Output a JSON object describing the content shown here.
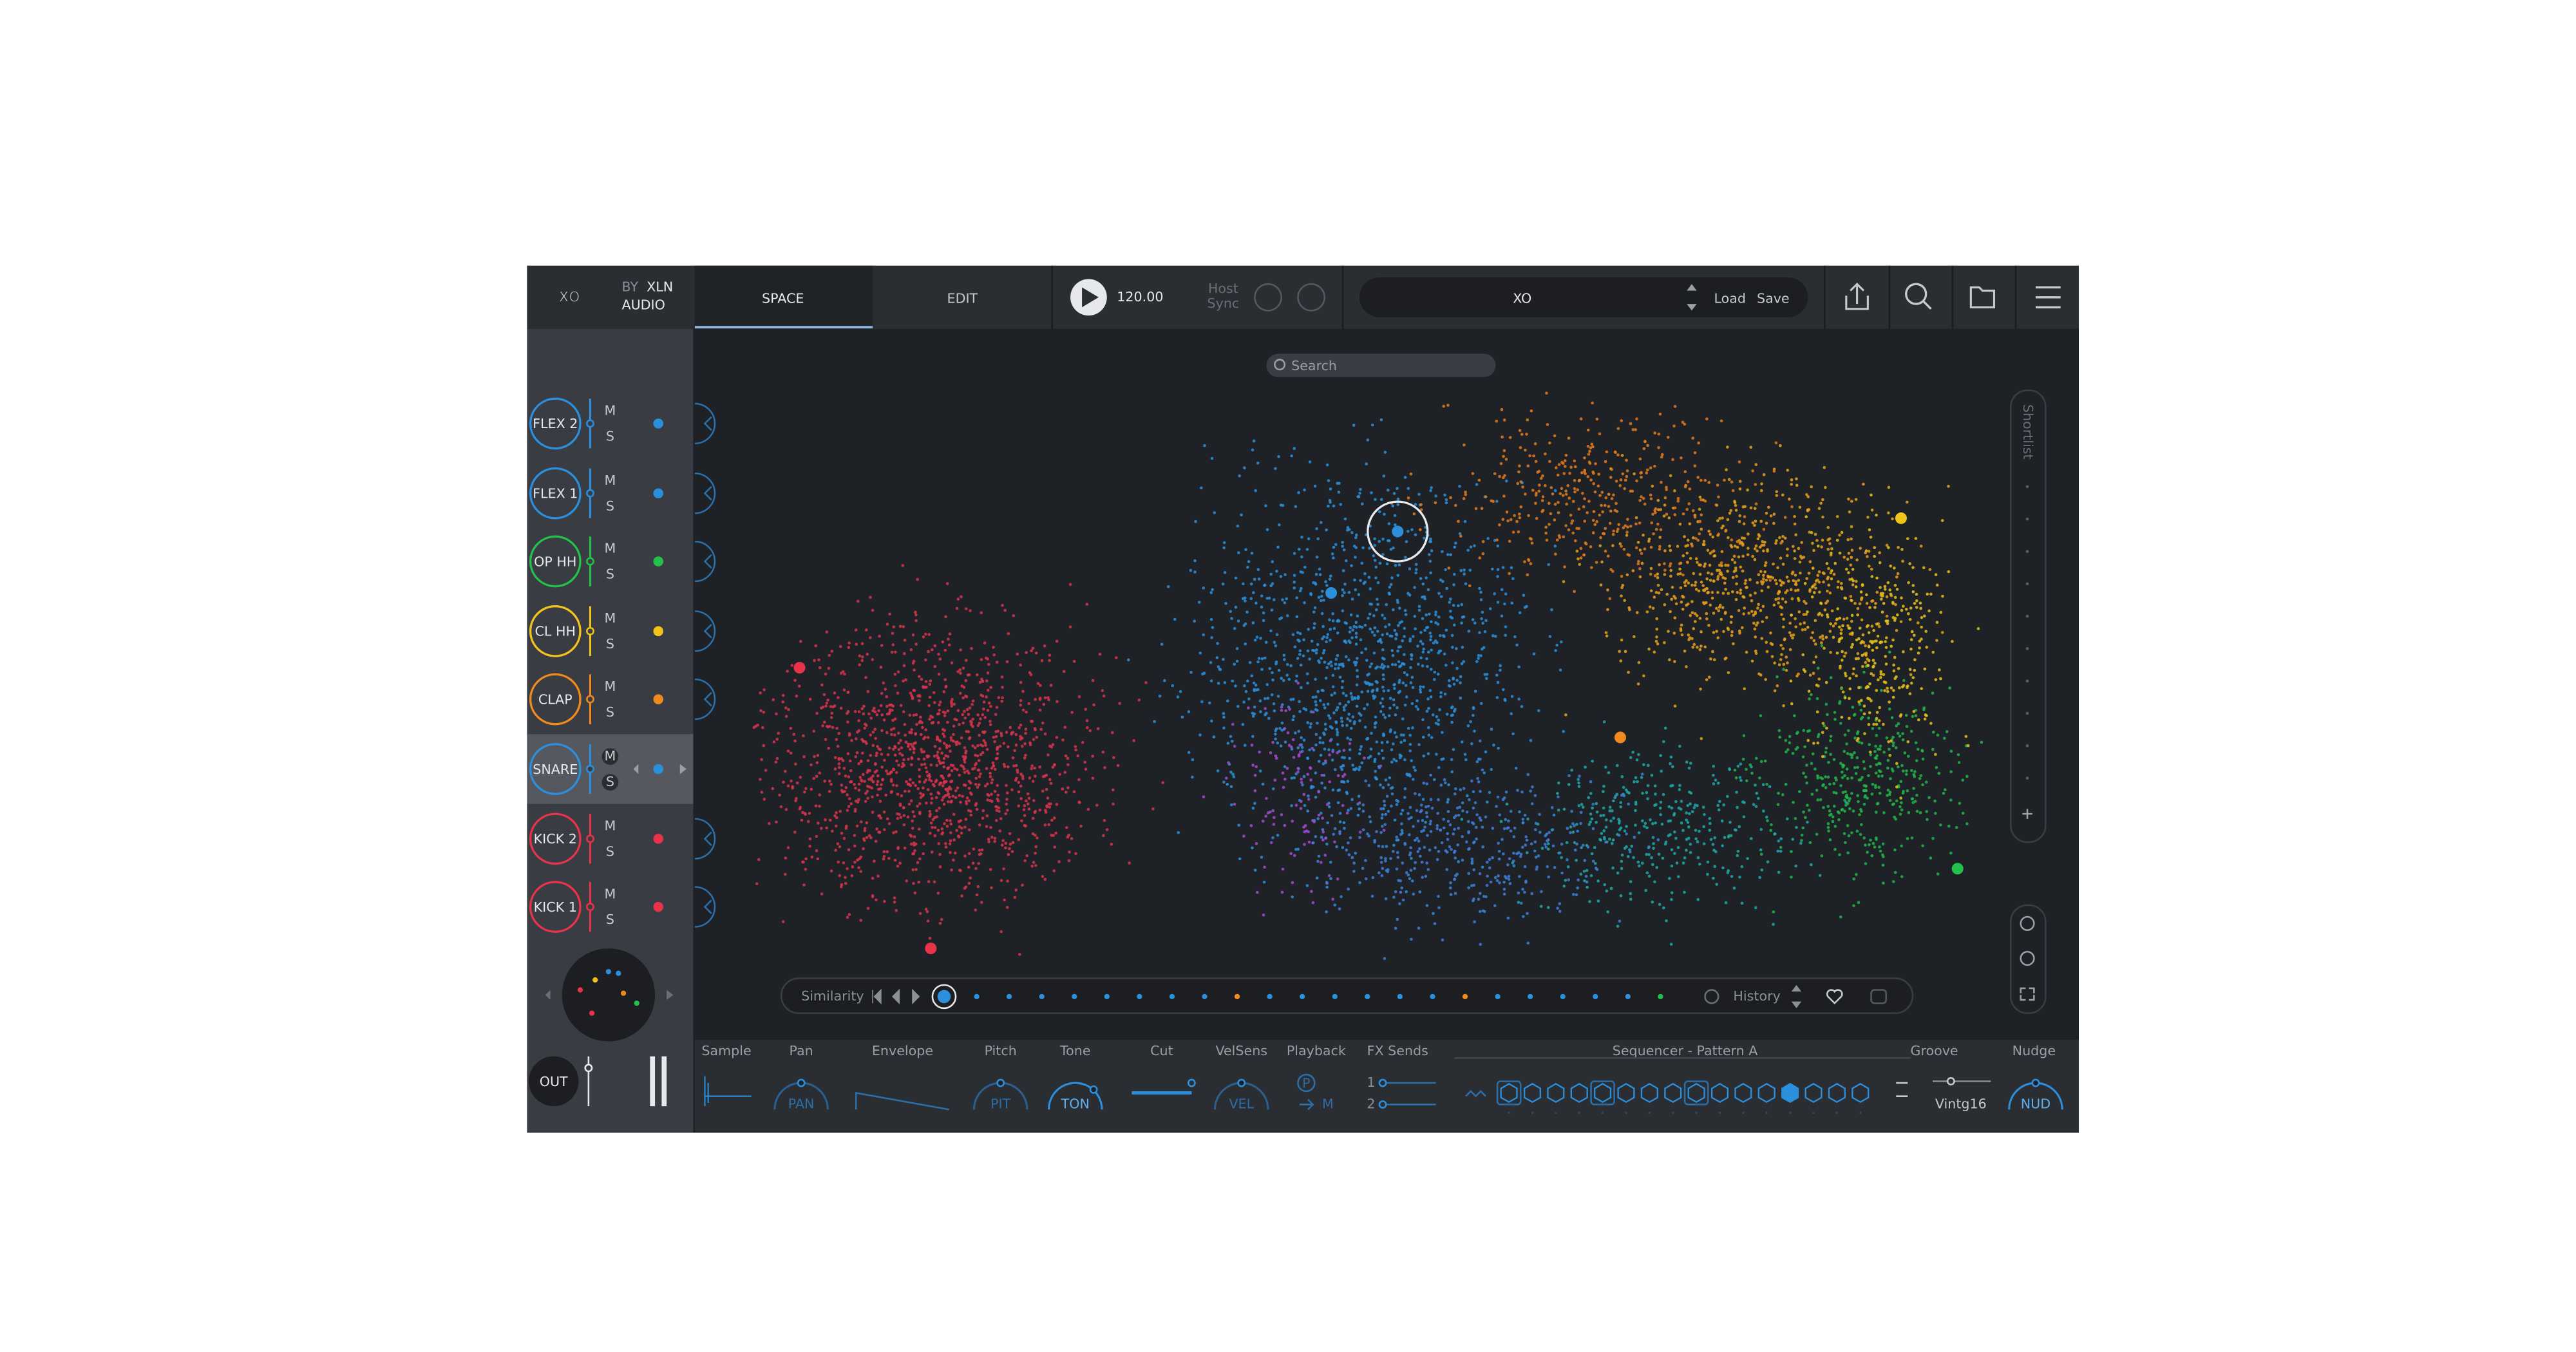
{
  "app": {
    "logo": {
      "mark": "XO",
      "by": "BY",
      "brand": "XLN",
      "sub": "AUDIO"
    },
    "tabs": [
      "SPACE",
      "EDIT"
    ],
    "tempo": "120.00",
    "host_sync": [
      "Host",
      "Sync"
    ],
    "preset": {
      "name": "XO",
      "load": "Load",
      "save": "Save"
    },
    "search": "Search",
    "shortlist": "Shortlist",
    "mute": "M",
    "solo": "S",
    "channels": [
      {
        "name": "FLEX 2",
        "color": "#2b8fdb"
      },
      {
        "name": "FLEX 1",
        "color": "#2b8fdb"
      },
      {
        "name": "OP HH",
        "color": "#22c24a"
      },
      {
        "name": "CL HH",
        "color": "#f2c31b"
      },
      {
        "name": "CLAP",
        "color": "#f08a1e"
      },
      {
        "name": "SNARE",
        "color": "#2b8fdb"
      },
      {
        "name": "KICK 2",
        "color": "#e8334b"
      },
      {
        "name": "KICK 1",
        "color": "#e8334b"
      }
    ],
    "out": "OUT",
    "similarity": "Similarity",
    "history": "History",
    "sections": [
      "Sample",
      "Pan",
      "Envelope",
      "Pitch",
      "Tone",
      "Cut",
      "VelSens",
      "Playback",
      "FX Sends",
      "Sequencer - Pattern A",
      "Groove",
      "Nudge"
    ],
    "knobs": [
      "PAN",
      "PIT",
      "TON",
      "VEL",
      "NUD"
    ],
    "playback": [
      "P",
      "M"
    ],
    "fx_sends": [
      "1",
      "2"
    ],
    "groove": "Vintg16"
  }
}
